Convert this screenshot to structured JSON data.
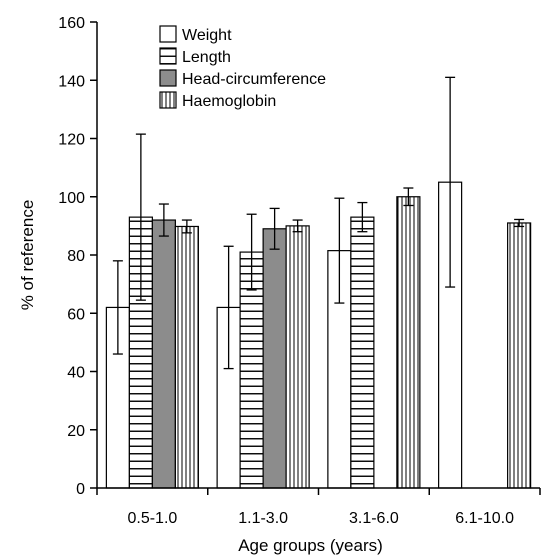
{
  "chart_data": {
    "type": "bar",
    "xlabel": "Age groups (years)",
    "ylabel": "% of reference",
    "ylim": [
      0,
      160
    ],
    "yticks": [
      0,
      20,
      40,
      60,
      80,
      100,
      120,
      140,
      160
    ],
    "categories": [
      "0.5-1.0",
      "1.1-3.0",
      "3.1-6.0",
      "6.1-10.0"
    ],
    "legend_position": "top-left",
    "grid": false,
    "series": [
      {
        "name": "Weight",
        "pattern": "white",
        "values": [
          62,
          62,
          81.5,
          105
        ],
        "errors": [
          16,
          21,
          18,
          36
        ]
      },
      {
        "name": "Length",
        "pattern": "horizontal-lines",
        "values": [
          93,
          81,
          93,
          null
        ],
        "errors": [
          28.5,
          13,
          5,
          null
        ]
      },
      {
        "name": "Head-circumference",
        "pattern": "gray",
        "values": [
          92,
          89,
          null,
          null
        ],
        "errors": [
          5.5,
          7,
          null,
          null
        ]
      },
      {
        "name": "Haemoglobin",
        "pattern": "vertical-lines",
        "values": [
          89.8,
          90,
          100,
          91
        ],
        "errors": [
          2.2,
          2,
          3,
          1.2
        ]
      }
    ]
  }
}
